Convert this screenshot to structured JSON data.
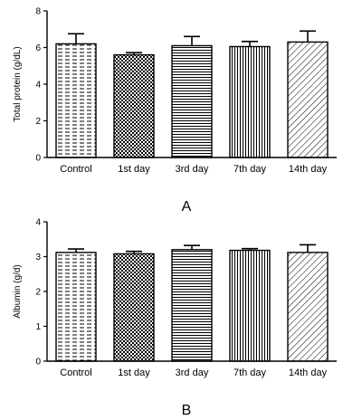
{
  "chart_data": [
    {
      "type": "bar",
      "panel_label": "A",
      "categories": [
        "Control",
        "1st day",
        "3rd day",
        "7th day",
        "14th day"
      ],
      "values": [
        6.2,
        5.6,
        6.1,
        6.05,
        6.3
      ],
      "errors": [
        0.55,
        0.12,
        0.5,
        0.28,
        0.6
      ],
      "patterns": [
        "horizontal-dashes",
        "checker",
        "horizontal-lines",
        "vertical-lines",
        "diagonal-lines"
      ],
      "title": "",
      "xlabel": "",
      "ylabel": "Total protein (g/dL)",
      "ylim": [
        0,
        8
      ],
      "yticks": [
        0,
        2,
        4,
        6,
        8
      ],
      "legend": "none",
      "grid": false
    },
    {
      "type": "bar",
      "panel_label": "B",
      "categories": [
        "Control",
        "1st day",
        "3rd day",
        "7th day",
        "14th day"
      ],
      "values": [
        3.12,
        3.08,
        3.2,
        3.18,
        3.12
      ],
      "errors": [
        0.1,
        0.07,
        0.12,
        0.05,
        0.22
      ],
      "patterns": [
        "horizontal-dashes",
        "checker",
        "horizontal-lines",
        "vertical-lines",
        "diagonal-lines"
      ],
      "title": "",
      "xlabel": "",
      "ylabel": "Albumin (g/d)",
      "ylim": [
        0,
        4
      ],
      "yticks": [
        0,
        1,
        2,
        3,
        4
      ],
      "legend": "none",
      "grid": false
    }
  ]
}
